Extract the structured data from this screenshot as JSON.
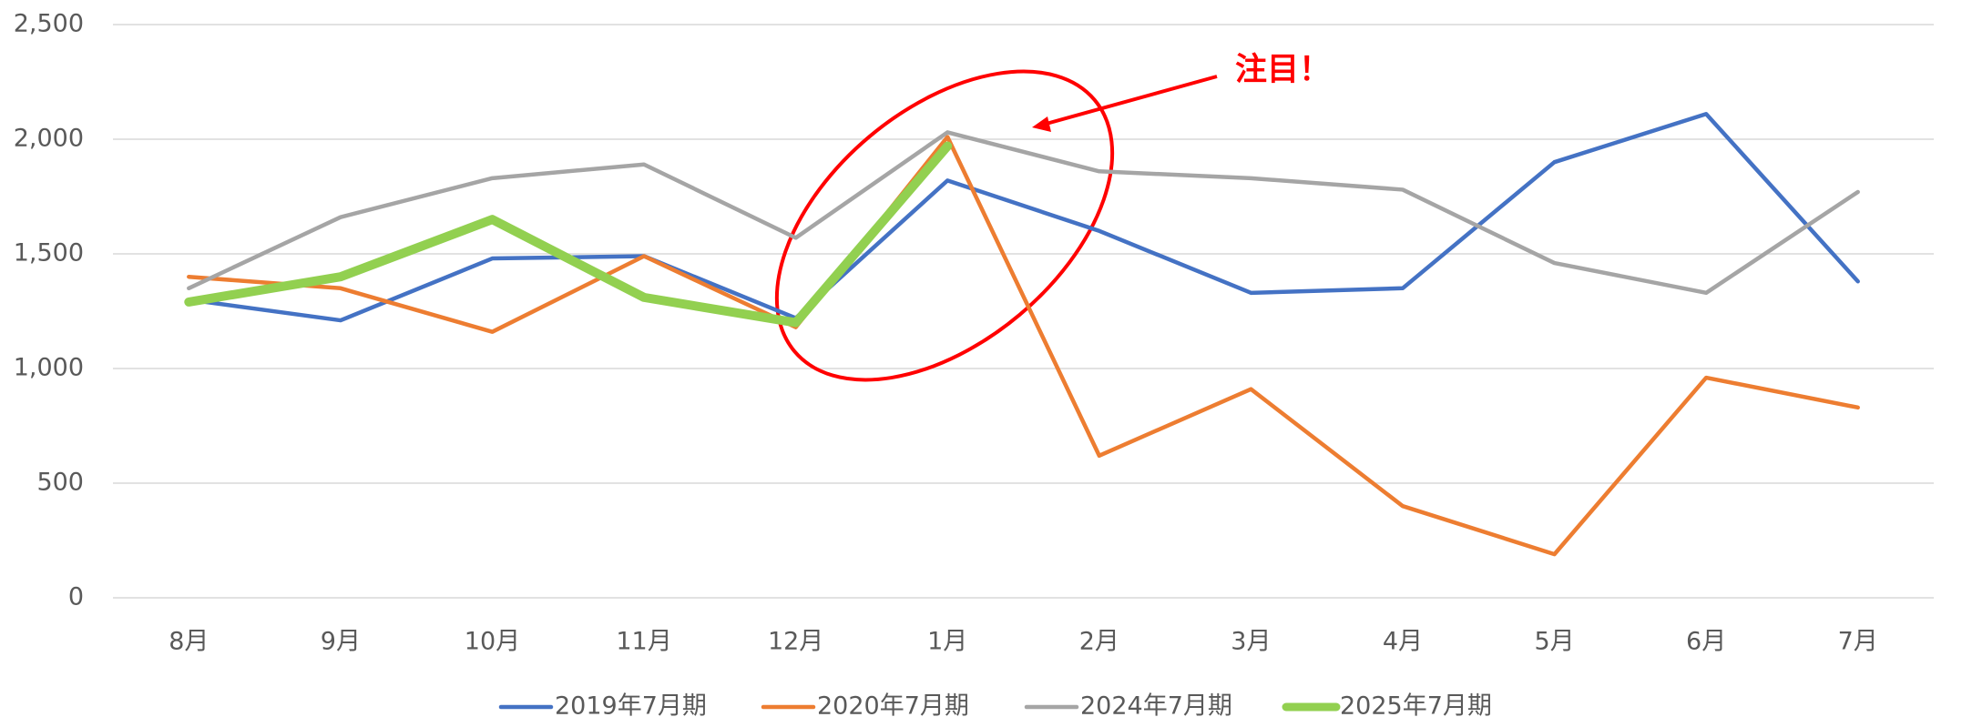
{
  "chart_data": {
    "type": "line",
    "annotation": "注目！",
    "categories": [
      "8月",
      "9月",
      "10月",
      "11月",
      "12月",
      "1月",
      "2月",
      "3月",
      "4月",
      "5月",
      "6月",
      "7月"
    ],
    "series": [
      {
        "name": "2019年7月期",
        "color": "#4472c4",
        "values": [
          1300,
          1210,
          1480,
          1490,
          1220,
          1820,
          1600,
          1330,
          1350,
          1900,
          2110,
          1380
        ]
      },
      {
        "name": "2020年7月期",
        "color": "#ed7d31",
        "values": [
          1400,
          1350,
          1160,
          1490,
          1180,
          2010,
          620,
          910,
          400,
          190,
          960,
          830
        ]
      },
      {
        "name": "2024年7月期",
        "color": "#a5a5a5",
        "values": [
          1350,
          1660,
          1830,
          1890,
          1570,
          2030,
          1860,
          1830,
          1780,
          1460,
          1330,
          1770
        ]
      },
      {
        "name": "2025年7月期",
        "color": "#92d050",
        "values": [
          1290,
          1400,
          1650,
          1310,
          1200,
          1970,
          null,
          null,
          null,
          null,
          null,
          null
        ]
      }
    ],
    "ylim": [
      0,
      2500
    ],
    "yticks": [
      0,
      500,
      {
        "value": 1000,
        "label": "1,000"
      },
      {
        "value": 1500,
        "label": "1,500"
      },
      {
        "value": 2000,
        "label": "2,000"
      },
      {
        "value": 2500,
        "label": "2,500"
      }
    ],
    "grid": true,
    "legend": "bottom"
  }
}
